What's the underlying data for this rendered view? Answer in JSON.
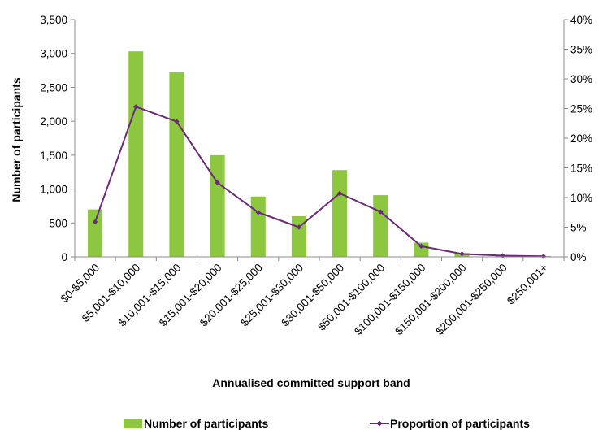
{
  "chart_data": {
    "type": "bar+line",
    "categories": [
      "$0-$5,000",
      "$5,001-$10,000",
      "$10,001-$15,000",
      "$15,001-$20,000",
      "$20,001-$25,000",
      "$25,001-$30,000",
      "$30,001-$50,000",
      "$50,001-$100,000",
      "$100,001-$150,000",
      "$150,001-$200,000",
      "$200,001-$250,000",
      "$250,001+"
    ],
    "series": [
      {
        "name": "Number of participants",
        "type": "bar",
        "axis": "left",
        "color": "#8dc63f",
        "values": [
          700,
          3030,
          2720,
          1500,
          890,
          600,
          1280,
          910,
          210,
          55,
          20,
          12
        ]
      },
      {
        "name": "Proportion of participants",
        "type": "line",
        "axis": "right",
        "color": "#6a2a78",
        "values": [
          5.9,
          25.3,
          22.8,
          12.5,
          7.5,
          5.0,
          10.7,
          7.6,
          1.8,
          0.5,
          0.2,
          0.1
        ]
      }
    ],
    "xlabel": "Annualised committed support band",
    "ylabel": "Number of participants",
    "ylim": [
      0,
      3500
    ],
    "yticks": [
      0,
      500,
      1000,
      1500,
      2000,
      2500,
      3000,
      3500
    ],
    "ytick_labels": [
      "0",
      "500",
      "1,000",
      "1,500",
      "2,000",
      "2,500",
      "3,000",
      "3,500"
    ],
    "y2lim": [
      0,
      40
    ],
    "y2ticks": [
      0,
      5,
      10,
      15,
      20,
      25,
      30,
      35,
      40
    ],
    "y2tick_labels": [
      "0%",
      "5%",
      "10%",
      "15%",
      "20%",
      "25%",
      "30%",
      "35%",
      "40%"
    ],
    "grid": false,
    "legend_position": "bottom"
  }
}
